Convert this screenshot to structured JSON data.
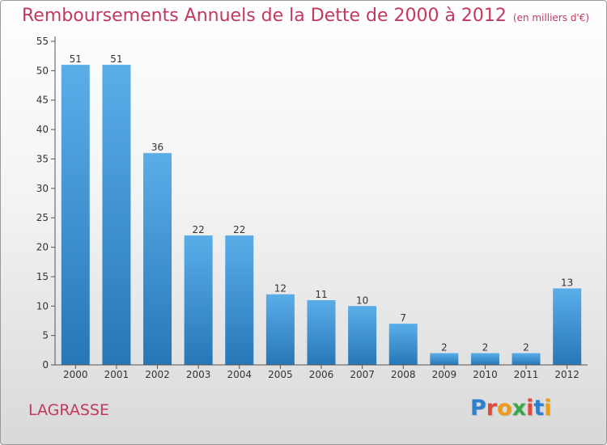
{
  "header": {
    "title": "Remboursements Annuels de la Dette de 2000 à 2012",
    "subtitle": "(en milliers d'€)"
  },
  "footer": {
    "town": "LAGRASSE",
    "logo": "Proxiti"
  },
  "colors": {
    "title": "#c0395e",
    "bar_light": "#5aaee8",
    "bar_dark": "#2677b8",
    "logo": [
      "#2f7fd0",
      "#e04a3c",
      "#f09a1a",
      "#3aa84a",
      "#e04a3c",
      "#2f7fd0",
      "#f09a1a"
    ]
  },
  "chart_data": {
    "type": "bar",
    "categories": [
      "2000",
      "2001",
      "2002",
      "2003",
      "2004",
      "2005",
      "2006",
      "2007",
      "2008",
      "2009",
      "2010",
      "2011",
      "2012"
    ],
    "values": [
      51,
      51,
      36,
      22,
      22,
      12,
      11,
      10,
      7,
      2,
      2,
      2,
      13
    ],
    "ylim": [
      0,
      55
    ],
    "yticks": [
      0,
      5,
      10,
      15,
      20,
      25,
      30,
      35,
      40,
      45,
      50,
      55
    ],
    "grid": false,
    "xlabel": "",
    "ylabel": ""
  }
}
